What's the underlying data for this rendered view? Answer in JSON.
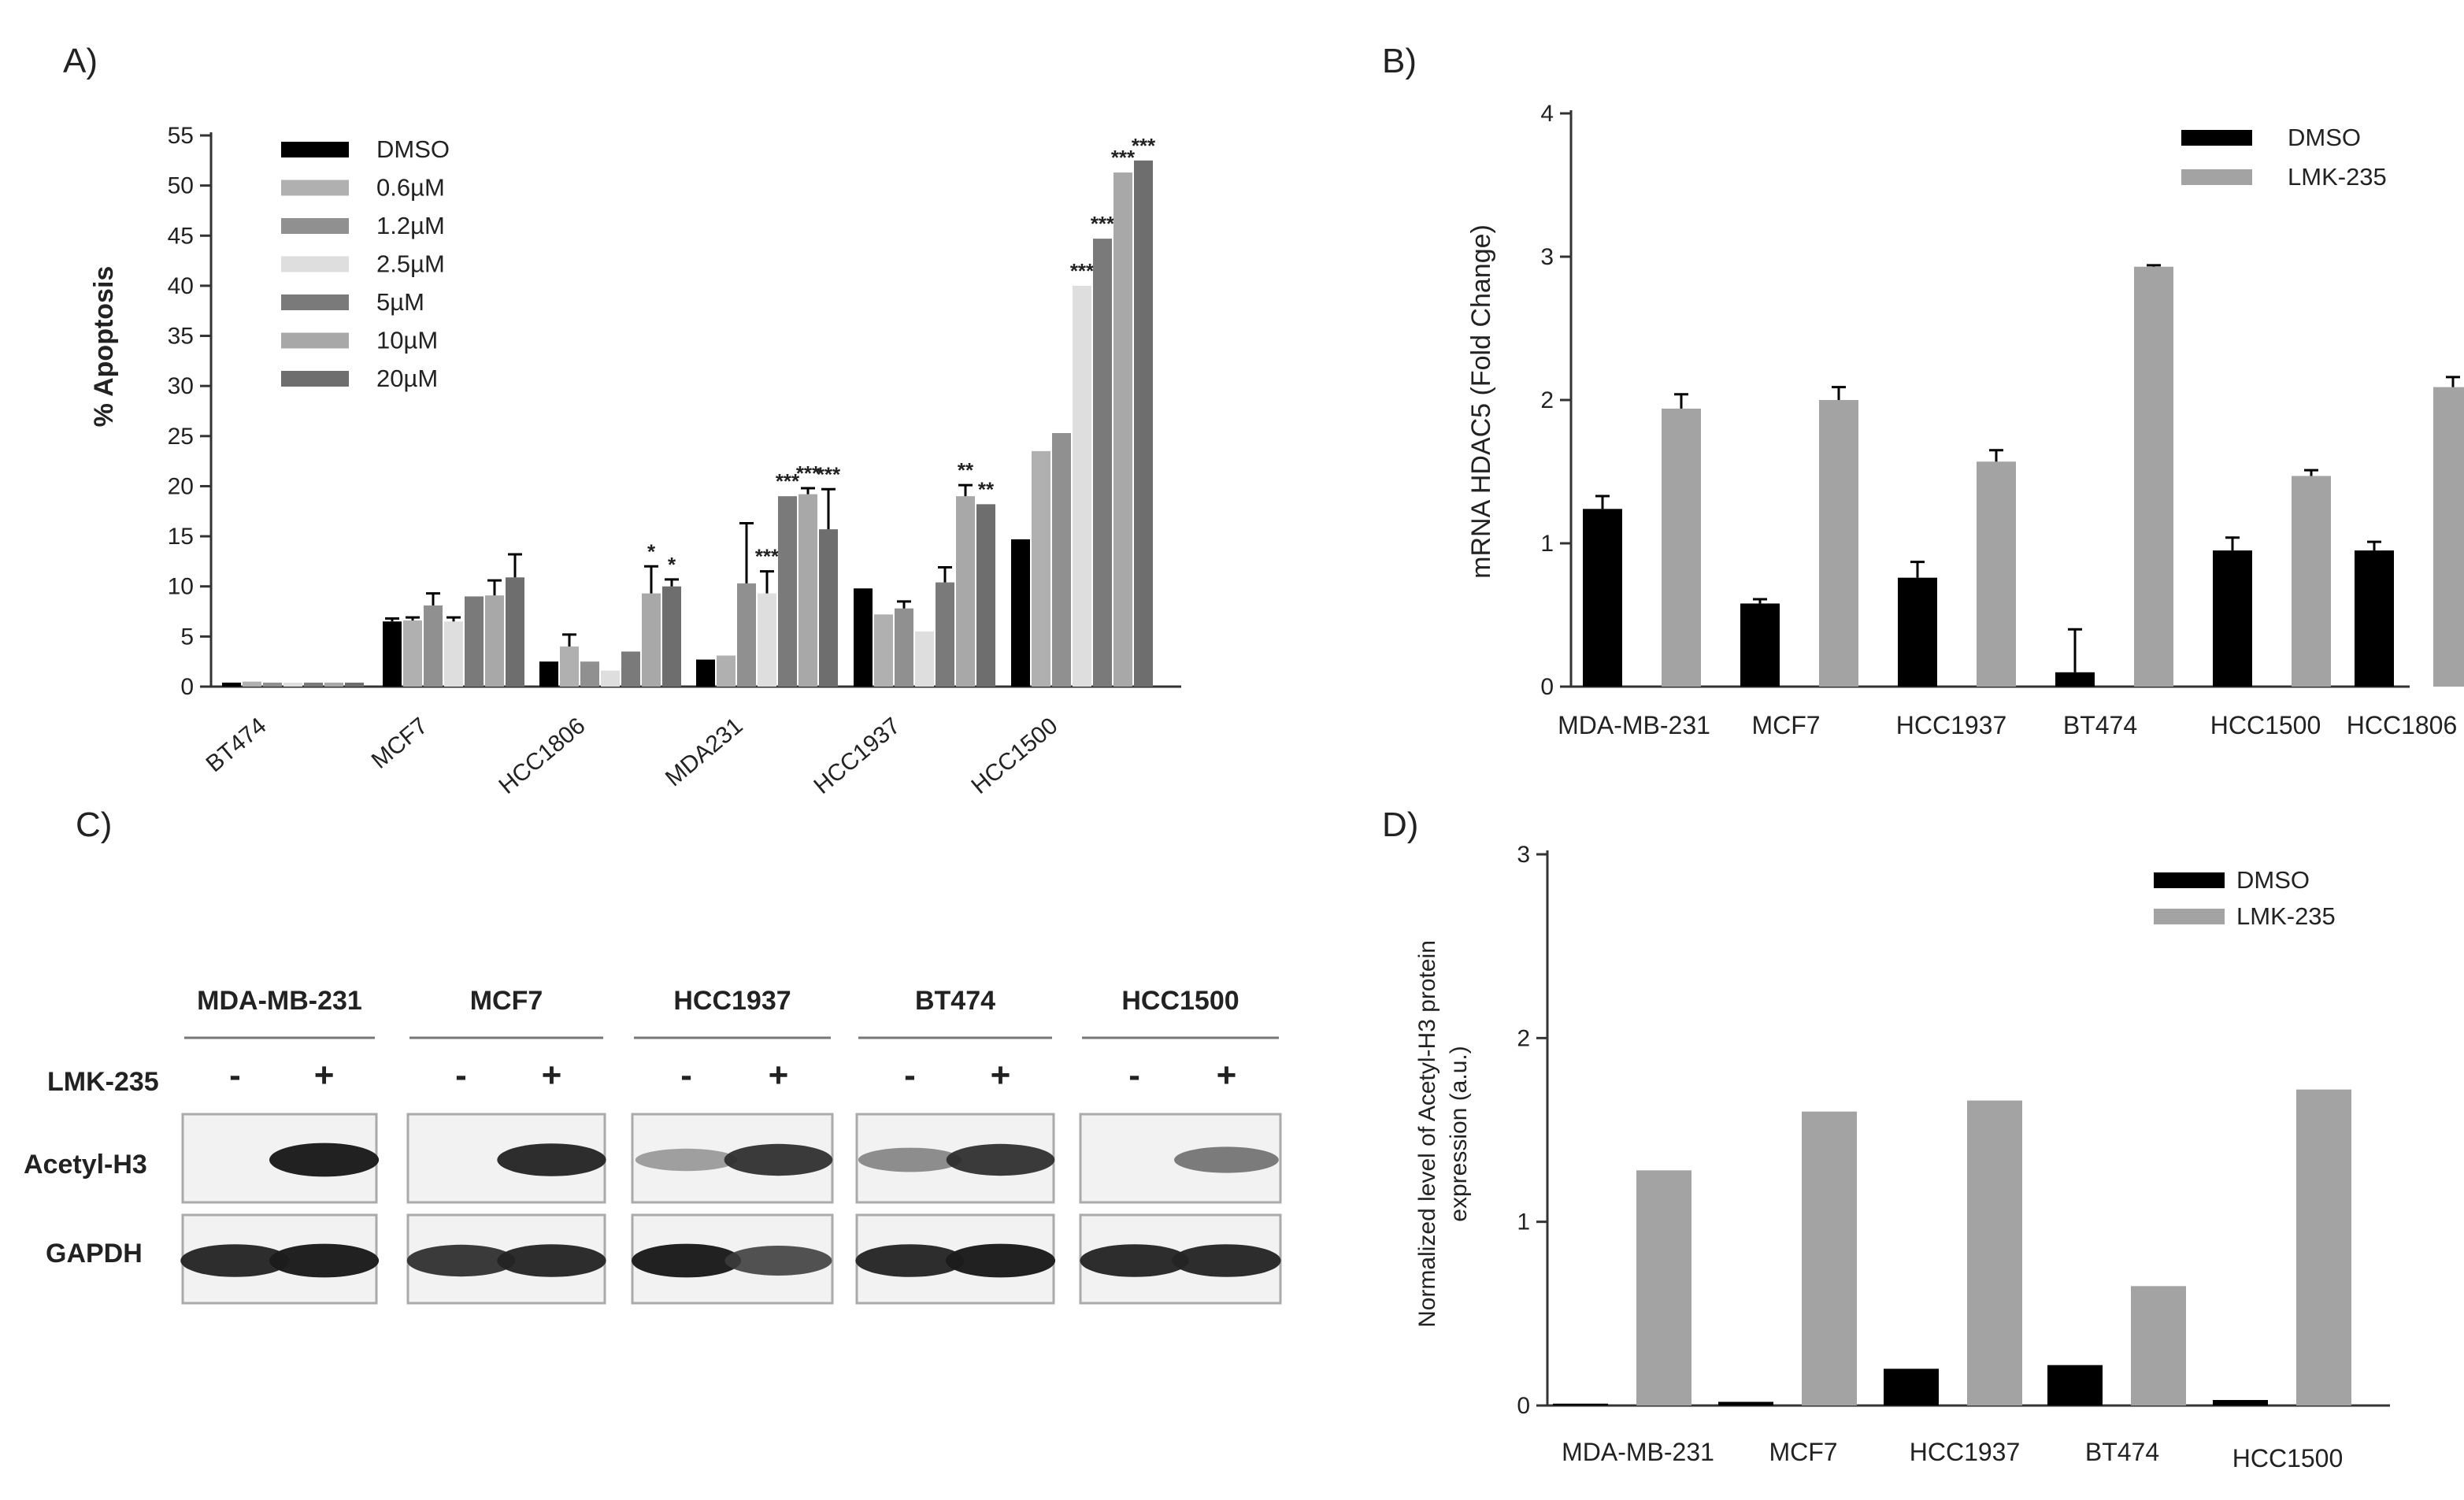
{
  "chart_data": [
    {
      "panel": "A)",
      "type": "bar",
      "ylabel": "% Apoptosis",
      "ylim": [
        0,
        55
      ],
      "yticks": [
        0,
        5,
        10,
        15,
        20,
        25,
        30,
        35,
        40,
        45,
        50,
        55
      ],
      "categories": [
        "BT474",
        "MCF7",
        "HCC1806",
        "MDA231",
        "HCC1937",
        "HCC1500"
      ],
      "series": [
        {
          "name": "DMSO",
          "color": "#000000",
          "values": [
            0.4,
            6.5,
            2.5,
            2.7,
            9.8,
            14.7
          ],
          "errors": [
            0,
            0.3,
            0,
            0,
            0,
            0
          ],
          "stars": [
            "",
            "",
            "",
            "",
            "",
            ""
          ]
        },
        {
          "name": "0.6µM",
          "color": "#b0b0b0",
          "values": [
            0.5,
            6.6,
            4.0,
            3.1,
            7.2,
            23.5
          ],
          "errors": [
            0,
            0.3,
            1.2,
            0,
            0,
            0
          ],
          "stars": [
            "",
            "",
            "",
            "",
            "",
            ""
          ]
        },
        {
          "name": "1.2µM",
          "color": "#909090",
          "values": [
            0.4,
            8.1,
            2.5,
            10.3,
            7.8,
            25.3
          ],
          "errors": [
            0,
            1.2,
            0,
            6.0,
            0.7,
            0
          ],
          "stars": [
            "",
            "",
            "",
            "",
            "",
            ""
          ]
        },
        {
          "name": "2.5µM",
          "color": "#dedede",
          "values": [
            0.4,
            6.5,
            1.6,
            9.3,
            5.5,
            40.0
          ],
          "errors": [
            0,
            0.4,
            0,
            2.2,
            0,
            0
          ],
          "stars": [
            "",
            "",
            "",
            "***",
            "",
            "***"
          ]
        },
        {
          "name": "5µM",
          "color": "#7a7a7a",
          "values": [
            0.4,
            9.0,
            3.5,
            19.0,
            10.4,
            44.7
          ],
          "errors": [
            0,
            0,
            0,
            0,
            1.5,
            0
          ],
          "stars": [
            "",
            "",
            "",
            "***",
            "",
            "***"
          ]
        },
        {
          "name": "10µM",
          "color": "#a8a8a8",
          "values": [
            0.4,
            9.1,
            9.3,
            19.2,
            19.0,
            51.3
          ],
          "errors": [
            0,
            1.5,
            2.7,
            0.6,
            1.1,
            0
          ],
          "stars": [
            "",
            "",
            "*",
            "***",
            "**",
            "***"
          ]
        },
        {
          "name": "20µM",
          "color": "#6e6e6e",
          "values": [
            0.4,
            10.9,
            10.0,
            15.7,
            18.2,
            52.5
          ],
          "errors": [
            0,
            2.3,
            0.7,
            4.0,
            0,
            0
          ],
          "stars": [
            "",
            "",
            "*",
            "***",
            "**",
            "***"
          ]
        }
      ]
    },
    {
      "panel": "B)",
      "type": "bar",
      "ylabel": "mRNA HDAC5 (Fold Change)",
      "ylim": [
        0,
        4
      ],
      "yticks": [
        0,
        1,
        2,
        3,
        4
      ],
      "categories": [
        "MDA-MB-231",
        "MCF7",
        "HCC1937",
        "BT474",
        "HCC1500",
        "HCC1806"
      ],
      "series": [
        {
          "name": "DMSO",
          "color": "#000000",
          "values": [
            1.24,
            0.58,
            0.76,
            0.1,
            0.95,
            0.95
          ],
          "errors": [
            0.09,
            0.03,
            0.11,
            0.3,
            0.09,
            0.06
          ]
        },
        {
          "name": "LMK-235",
          "color": "#a3a3a3",
          "values": [
            1.94,
            2.0,
            1.57,
            2.93,
            1.47,
            2.09
          ],
          "errors": [
            0.1,
            0.09,
            0.08,
            0.01,
            0.04,
            0.07
          ]
        }
      ]
    },
    {
      "panel": "D)",
      "type": "bar",
      "ylabel_line1": "Normalized level of Acetyl-H3 protein",
      "ylabel_line2": "expression (a.u.)",
      "ylim": [
        0,
        3
      ],
      "yticks": [
        0,
        1,
        2,
        3
      ],
      "categories": [
        "MDA-MB-231",
        "MCF7",
        "HCC1937",
        "BT474",
        "HCC1500"
      ],
      "series": [
        {
          "name": "DMSO",
          "color": "#000000",
          "values": [
            0.01,
            0.02,
            0.2,
            0.22,
            0.03
          ]
        },
        {
          "name": "LMK-235",
          "color": "#a3a3a3",
          "values": [
            1.28,
            1.6,
            1.66,
            0.65,
            1.72
          ]
        }
      ]
    }
  ],
  "blot": {
    "panel": "C)",
    "treatment_label": "LMK-235",
    "minus": "-",
    "plus": "+",
    "rows": [
      "Acetyl-H3",
      "GAPDH"
    ],
    "cell_lines": [
      "MDA-MB-231",
      "MCF7",
      "HCC1937",
      "BT474",
      "HCC1500"
    ],
    "band_intensity": {
      "Acetyl-H3": [
        [
          0,
          0.95
        ],
        [
          0,
          0.9
        ],
        [
          0.35,
          0.85
        ],
        [
          0.45,
          0.85
        ],
        [
          0,
          0.55
        ]
      ],
      "GAPDH": [
        [
          0.9,
          0.95
        ],
        [
          0.85,
          0.9
        ],
        [
          0.95,
          0.75
        ],
        [
          0.9,
          0.95
        ],
        [
          0.9,
          0.9
        ]
      ]
    }
  }
}
